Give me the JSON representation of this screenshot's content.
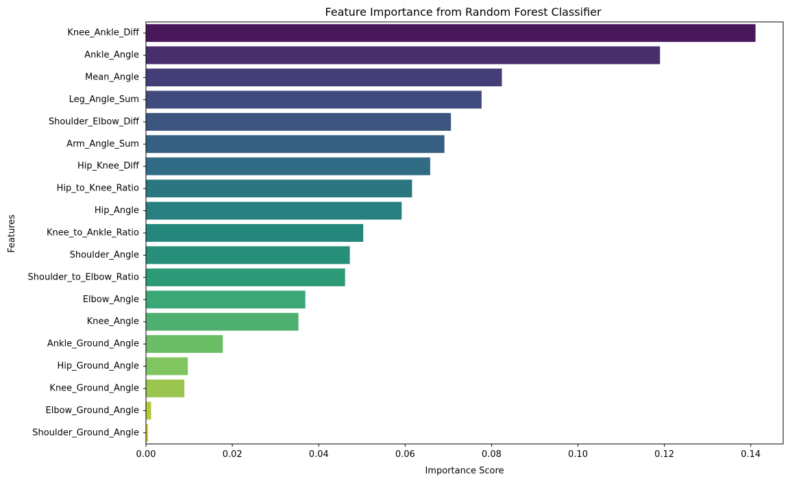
{
  "chart_data": {
    "type": "bar",
    "orientation": "horizontal",
    "title": "Feature Importance from Random Forest Classifier",
    "xlabel": "Importance Score",
    "ylabel": "Features",
    "xlim": [
      0,
      0.1475
    ],
    "xticks": [
      0.0,
      0.02,
      0.04,
      0.06,
      0.08,
      0.1,
      0.12,
      0.14
    ],
    "xtick_labels": [
      "0.00",
      "0.02",
      "0.04",
      "0.06",
      "0.08",
      "0.10",
      "0.12",
      "0.14"
    ],
    "grid": false,
    "colormap": "viridis",
    "categories": [
      "Knee_Ankle_Diff",
      "Ankle_Angle",
      "Mean_Angle",
      "Leg_Angle_Sum",
      "Shoulder_Elbow_Diff",
      "Arm_Angle_Sum",
      "Hip_Knee_Diff",
      "Hip_to_Knee_Ratio",
      "Hip_Angle",
      "Knee_to_Ankle_Ratio",
      "Shoulder_Angle",
      "Shoulder_to_Elbow_Ratio",
      "Elbow_Angle",
      "Knee_Angle",
      "Ankle_Ground_Angle",
      "Hip_Ground_Angle",
      "Knee_Ground_Angle",
      "Elbow_Ground_Angle",
      "Shoulder_Ground_Angle"
    ],
    "values": [
      0.1411,
      0.119,
      0.0824,
      0.0777,
      0.0706,
      0.0691,
      0.0658,
      0.0616,
      0.0592,
      0.0503,
      0.0472,
      0.0461,
      0.0369,
      0.0353,
      0.0178,
      0.0097,
      0.0089,
      0.0012,
      0.0005
    ],
    "colors": [
      "#48185b",
      "#482e6b",
      "#443e78",
      "#414a7c",
      "#3c5680",
      "#375f82",
      "#326b86",
      "#2c7680",
      "#287f7f",
      "#25867c",
      "#268e79",
      "#2d9a77",
      "#3ca776",
      "#4faf71",
      "#6bbd66",
      "#80c560",
      "#9ac64f",
      "#b0cb3a",
      "#cfd437"
    ]
  }
}
